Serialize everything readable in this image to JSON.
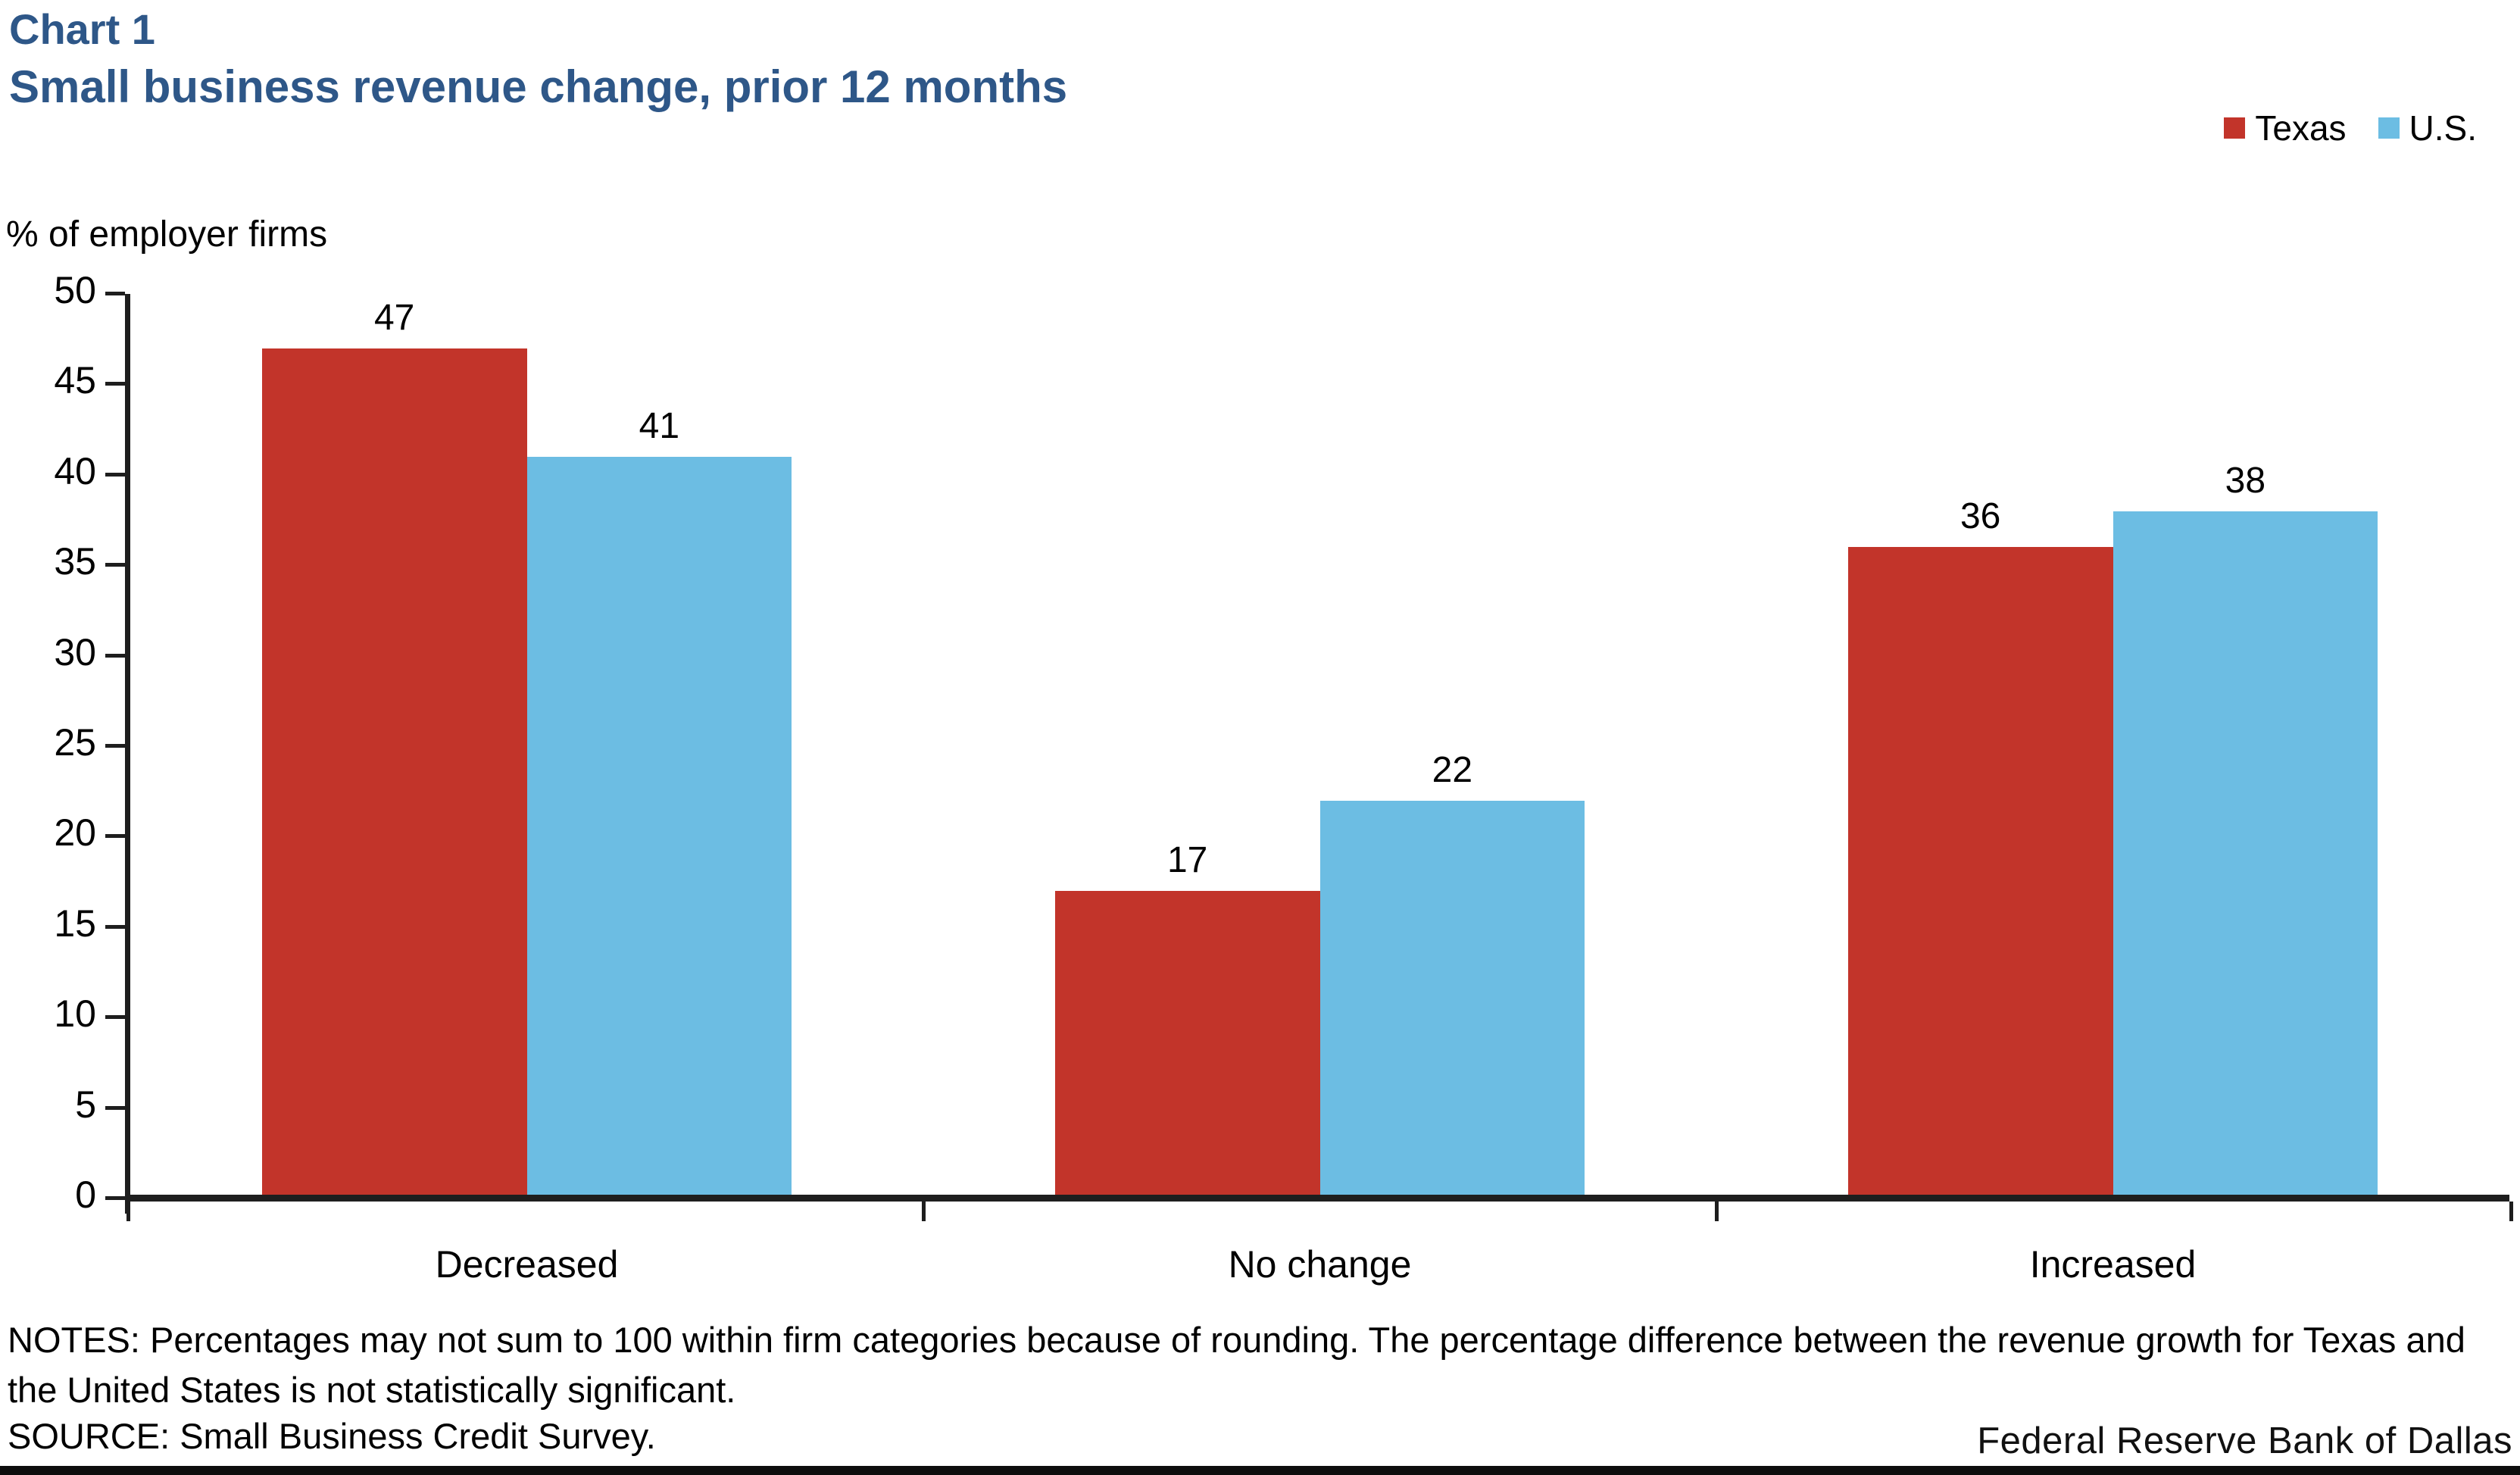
{
  "header": {
    "chart_label": "Chart 1",
    "title": "Small business revenue change, prior 12 months"
  },
  "colors": {
    "texas": "#C2342A",
    "us": "#6CBDE3",
    "title_blue": "#2E5788",
    "axis": "#1E1E1E",
    "bottom_band": "#0D0D0D"
  },
  "chart_data": {
    "type": "bar",
    "categories": [
      "Decreased",
      "No change",
      "Increased"
    ],
    "series": [
      {
        "name": "Texas",
        "color_key": "texas",
        "values": [
          47,
          17,
          36
        ]
      },
      {
        "name": "U.S.",
        "color_key": "us",
        "values": [
          41,
          22,
          38
        ]
      }
    ],
    "title": "Small business revenue change, prior 12 months",
    "xlabel": "",
    "ylabel": "% of employer firms",
    "ylim": [
      0,
      50
    ],
    "y_ticks": [
      0,
      5,
      10,
      15,
      20,
      25,
      30,
      35,
      40,
      45,
      50
    ],
    "grid": false,
    "legend_position": "top-right",
    "data_labels": true
  },
  "footer": {
    "notes": "NOTES: Percentages may not sum to 100 within firm categories because of rounding. The percentage difference between the revenue growth for Texas and the United States is not statistically significant.",
    "source": "SOURCE: Small Business Credit Survey.",
    "branding": "Federal Reserve Bank of Dallas"
  }
}
